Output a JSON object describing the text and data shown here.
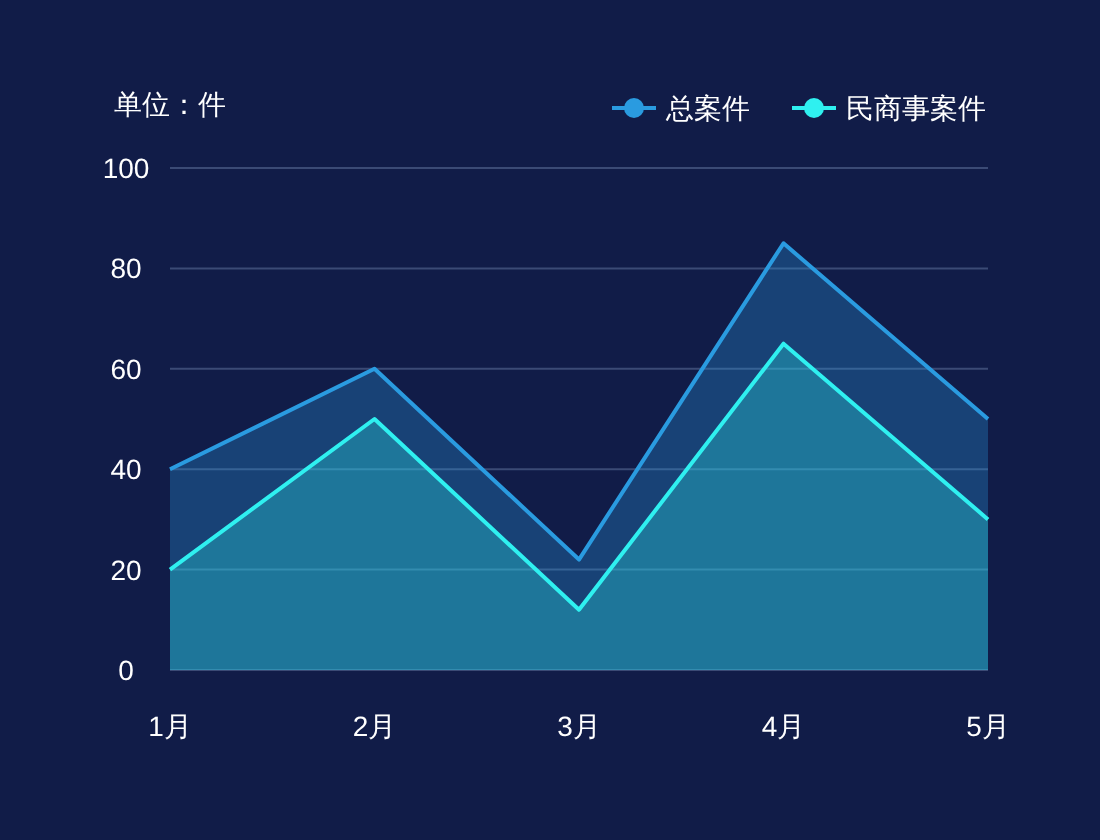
{
  "chart_data": {
    "type": "area",
    "ylabel": "单位：件",
    "categories": [
      "1月",
      "2月",
      "3月",
      "4月",
      "5月"
    ],
    "series": [
      {
        "name": "总案件",
        "color": "#2a9be0",
        "values": [
          40,
          60,
          22,
          85,
          50
        ]
      },
      {
        "name": "民商事案件",
        "color": "#2ff0f0",
        "values": [
          20,
          50,
          12,
          65,
          30
        ]
      }
    ],
    "ylim": [
      0,
      100
    ],
    "yticks": [
      0,
      20,
      40,
      60,
      80,
      100
    ],
    "grid": "y",
    "legend": "top right",
    "marker": "none",
    "line_style": "solid"
  }
}
